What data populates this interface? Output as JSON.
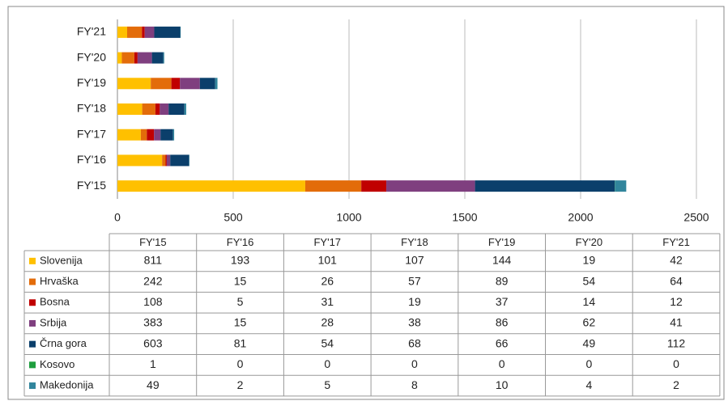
{
  "chart_data": {
    "type": "bar",
    "orientation": "horizontal",
    "stacked": true,
    "categories": [
      "FY'15",
      "FY'16",
      "FY'17",
      "FY'18",
      "FY'19",
      "FY'20",
      "FY'21"
    ],
    "series": [
      {
        "name": "Slovenija",
        "color": "#ffc000",
        "values": [
          811,
          193,
          101,
          107,
          144,
          19,
          42
        ]
      },
      {
        "name": "Hrvaška",
        "color": "#e36c0a",
        "values": [
          242,
          15,
          26,
          57,
          89,
          54,
          64
        ]
      },
      {
        "name": "Bosna",
        "color": "#c00000",
        "values": [
          108,
          5,
          31,
          19,
          37,
          14,
          12
        ]
      },
      {
        "name": "Srbija",
        "color": "#7f3f7f",
        "values": [
          383,
          15,
          28,
          38,
          86,
          62,
          41
        ]
      },
      {
        "name": "Črna gora",
        "color": "#0b3f6b",
        "values": [
          603,
          81,
          54,
          68,
          66,
          49,
          112
        ]
      },
      {
        "name": "Kosovo",
        "color": "#1e9e3e",
        "values": [
          1,
          0,
          0,
          0,
          0,
          0,
          0
        ]
      },
      {
        "name": "Makedonija",
        "color": "#31859c",
        "values": [
          49,
          2,
          5,
          8,
          10,
          4,
          2
        ]
      }
    ],
    "xlim": [
      0,
      2500
    ],
    "xticks": [
      0,
      500,
      1000,
      1500,
      2000,
      2500
    ],
    "grid": true
  }
}
